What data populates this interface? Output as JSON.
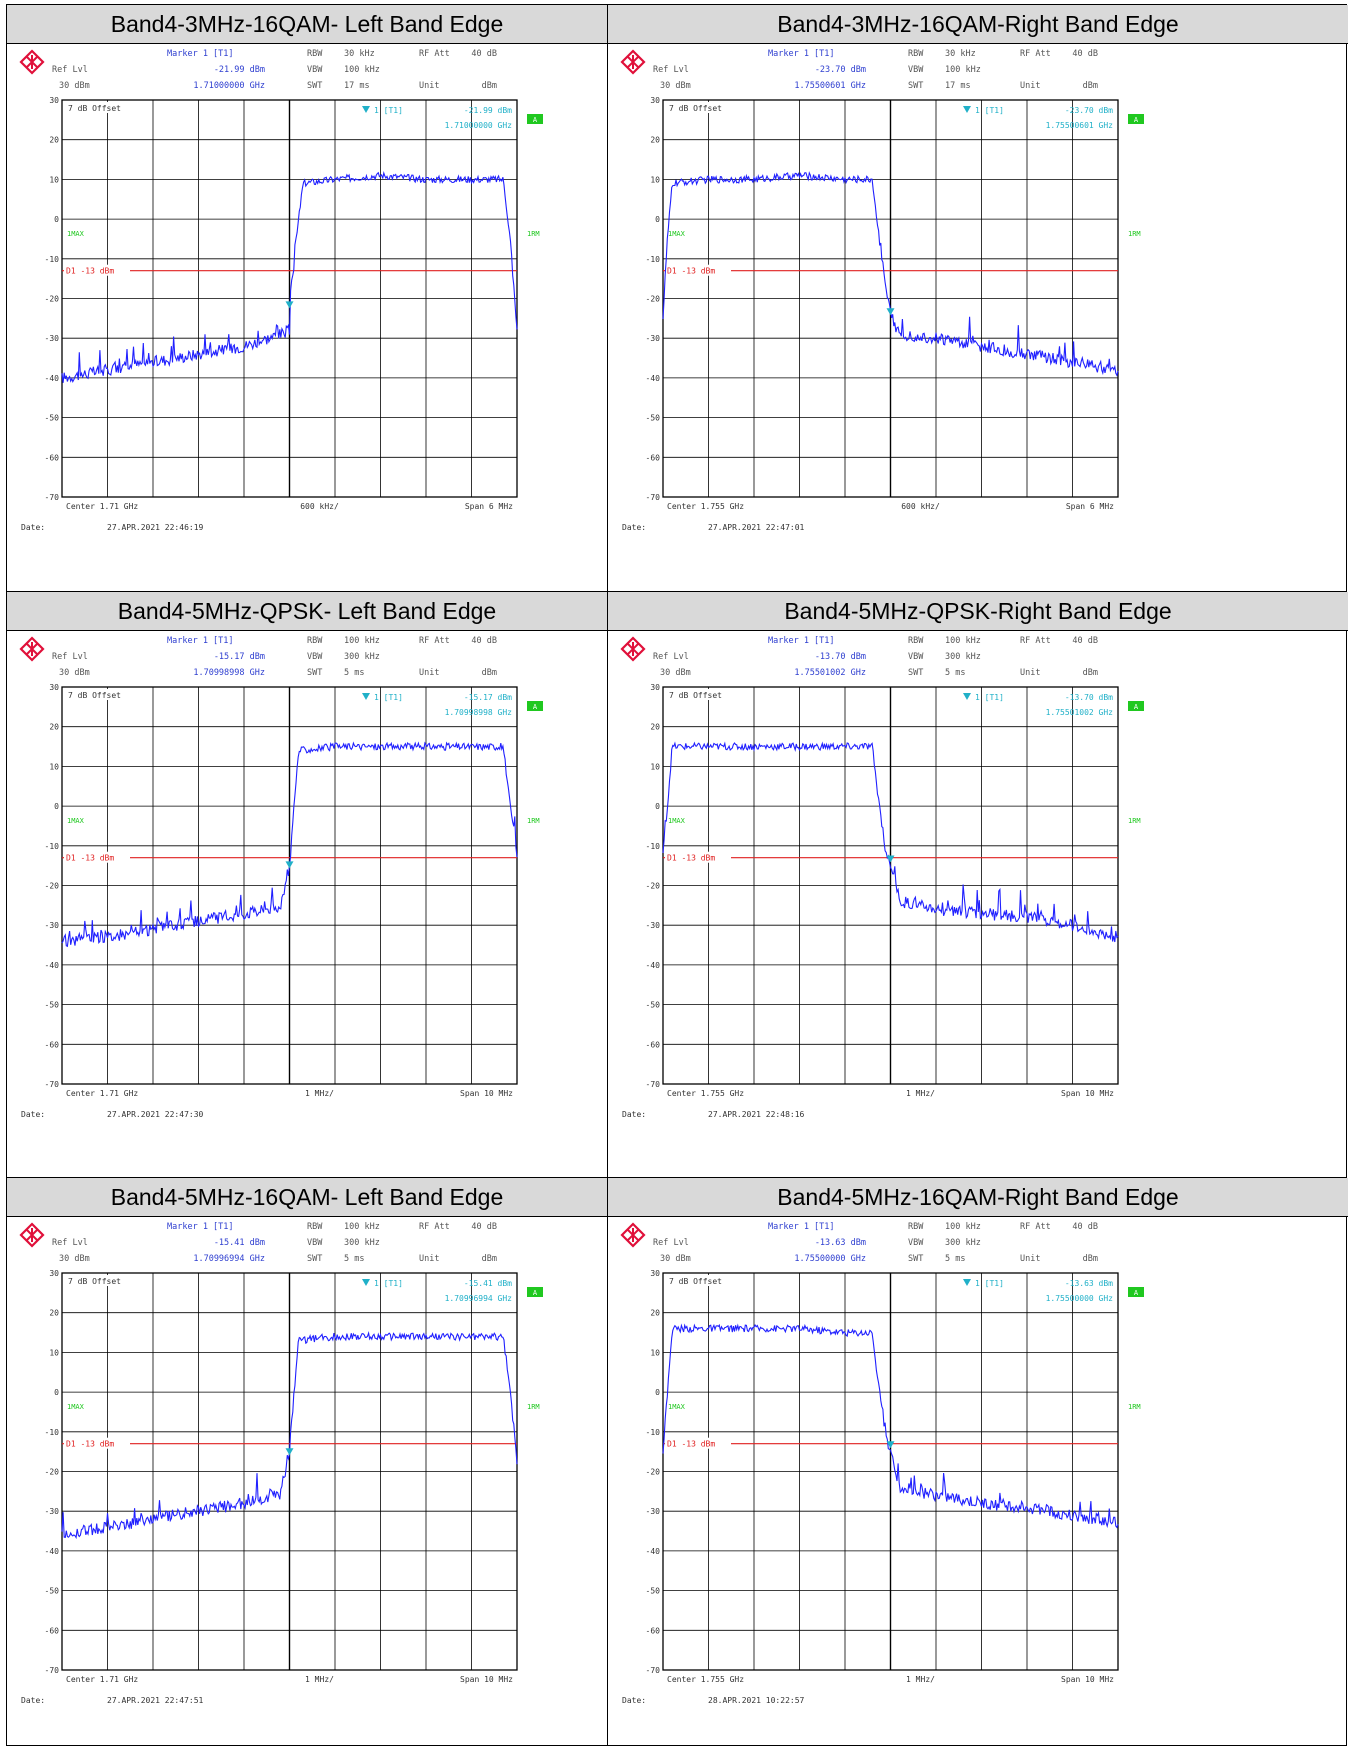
{
  "panels": [
    {
      "title": "Band4-3MHz-16QAM- Left Band Edge",
      "marker_label": "Marker 1 [T1]",
      "marker_level": "-21.99 dBm",
      "marker_freq": "1.71000000 GHz",
      "ref_lvl_label": "Ref Lvl",
      "ref_lvl": "30 dBm",
      "rbw_label": "RBW",
      "rbw": "30 kHz",
      "vbw_label": "VBW",
      "vbw": "100 kHz",
      "swt_label": "SWT",
      "swt": "17 ms",
      "rf_att_label": "RF Att",
      "rf_att": "40 dB",
      "unit_label": "Unit",
      "unit": "dBm",
      "offset": "7 dB Offset",
      "marker_box_label": "1 [T1]",
      "marker_box_level": "-21.99 dBm",
      "marker_box_freq": "1.71000000 GHz",
      "badge": "A",
      "trace_mode": "1MAX",
      "right_label": "1RM",
      "limit_label": "D1 -13 dBm",
      "center": "Center 1.71 GHz",
      "division": "600 kHz/",
      "span": "Span 6 MHz",
      "date_label": "Date:",
      "date": "27.APR.2021  22:46:19",
      "chart_data": {
        "type": "line",
        "edge": "left",
        "ylim": [
          -70,
          30
        ],
        "yticks": [
          "30",
          "20",
          "10",
          "0",
          "-10",
          "-20",
          "-30",
          "-40",
          "-50",
          "-60",
          "-70"
        ],
        "limit": -13,
        "marker_x": 0.5,
        "marker_y": -21.99,
        "series": [
          {
            "values": [
              [
                0,
                -40
              ],
              [
                0.1,
                -38
              ],
              [
                0.2,
                -36
              ],
              [
                0.3,
                -34
              ],
              [
                0.4,
                -32
              ],
              [
                0.48,
                -29
              ],
              [
                0.5,
                -28
              ],
              [
                0.5,
                -22
              ],
              [
                0.52,
                0
              ],
              [
                0.53,
                9
              ],
              [
                0.6,
                10
              ],
              [
                0.7,
                11
              ],
              [
                0.8,
                10
              ],
              [
                0.9,
                10
              ],
              [
                0.97,
                10
              ],
              [
                0.985,
                -5
              ],
              [
                1,
                -27
              ]
            ]
          }
        ]
      }
    },
    {
      "title": "Band4-3MHz-16QAM-Right Band Edge",
      "marker_label": "Marker 1 [T1]",
      "marker_level": "-23.70 dBm",
      "marker_freq": "1.75500601 GHz",
      "ref_lvl_label": "Ref Lvl",
      "ref_lvl": "30 dBm",
      "rbw_label": "RBW",
      "rbw": "30 kHz",
      "vbw_label": "VBW",
      "vbw": "100 kHz",
      "swt_label": "SWT",
      "swt": "17 ms",
      "rf_att_label": "RF Att",
      "rf_att": "40 dB",
      "unit_label": "Unit",
      "unit": "dBm",
      "offset": "7 dB Offset",
      "marker_box_label": "1 [T1]",
      "marker_box_level": "-23.70 dBm",
      "marker_box_freq": "1.75500601 GHz",
      "badge": "A",
      "trace_mode": "1MAX",
      "right_label": "1RM",
      "limit_label": "D1 -13 dBm",
      "center": "Center 1.755 GHz",
      "division": "600 kHz/",
      "span": "Span 6 MHz",
      "date_label": "Date:",
      "date": "27.APR.2021  22:47:01",
      "chart_data": {
        "type": "line",
        "edge": "right",
        "ylim": [
          -70,
          30
        ],
        "yticks": [
          "30",
          "20",
          "10",
          "0",
          "-10",
          "-20",
          "-30",
          "-40",
          "-50",
          "-60",
          "-70"
        ],
        "limit": -13,
        "marker_x": 0.5,
        "marker_y": -23.7,
        "series": [
          {
            "values": [
              [
                0,
                -24
              ],
              [
                0.01,
                -5
              ],
              [
                0.02,
                9
              ],
              [
                0.1,
                10
              ],
              [
                0.2,
                10
              ],
              [
                0.3,
                11
              ],
              [
                0.4,
                10
              ],
              [
                0.46,
                10
              ],
              [
                0.47,
                0
              ],
              [
                0.49,
                -18
              ],
              [
                0.5,
                -24
              ],
              [
                0.52,
                -29
              ],
              [
                0.6,
                -30
              ],
              [
                0.7,
                -32
              ],
              [
                0.8,
                -34
              ],
              [
                0.9,
                -36
              ],
              [
                1,
                -38
              ]
            ]
          }
        ]
      }
    },
    {
      "title": "Band4-5MHz-QPSK- Left Band Edge",
      "marker_label": "Marker 1 [T1]",
      "marker_level": "-15.17 dBm",
      "marker_freq": "1.70998998 GHz",
      "ref_lvl_label": "Ref Lvl",
      "ref_lvl": "30 dBm",
      "rbw_label": "RBW",
      "rbw": "100 kHz",
      "vbw_label": "VBW",
      "vbw": "300 kHz",
      "swt_label": "SWT",
      "swt": "5 ms",
      "rf_att_label": "RF Att",
      "rf_att": "40 dB",
      "unit_label": "Unit",
      "unit": "dBm",
      "offset": "7 dB Offset",
      "marker_box_label": "1 [T1]",
      "marker_box_level": "-15.17 dBm",
      "marker_box_freq": "1.70998998 GHz",
      "badge": "A",
      "trace_mode": "1MAX",
      "right_label": "1RM",
      "limit_label": "D1 -13 dBm",
      "center": "Center 1.71 GHz",
      "division": "1 MHz/",
      "span": "Span 10 MHz",
      "date_label": "Date:",
      "date": "27.APR.2021  22:47:30",
      "chart_data": {
        "type": "line",
        "edge": "left",
        "ylim": [
          -70,
          30
        ],
        "yticks": [
          "30",
          "20",
          "10",
          "0",
          "-10",
          "-20",
          "-30",
          "-40",
          "-50",
          "-60",
          "-70"
        ],
        "limit": -13,
        "marker_x": 0.5,
        "marker_y": -15.17,
        "series": [
          {
            "values": [
              [
                0,
                -34
              ],
              [
                0.1,
                -33
              ],
              [
                0.2,
                -31
              ],
              [
                0.3,
                -29
              ],
              [
                0.4,
                -27
              ],
              [
                0.48,
                -25
              ],
              [
                0.49,
                -20
              ],
              [
                0.5,
                -15
              ],
              [
                0.51,
                0
              ],
              [
                0.52,
                14
              ],
              [
                0.6,
                15
              ],
              [
                0.7,
                15
              ],
              [
                0.8,
                15
              ],
              [
                0.9,
                15
              ],
              [
                0.97,
                15
              ],
              [
                0.985,
                0
              ],
              [
                1,
                -12
              ]
            ]
          }
        ]
      }
    },
    {
      "title": "Band4-5MHz-QPSK-Right Band Edge",
      "marker_label": "Marker 1 [T1]",
      "marker_level": "-13.70 dBm",
      "marker_freq": "1.75501002 GHz",
      "ref_lvl_label": "Ref Lvl",
      "ref_lvl": "30 dBm",
      "rbw_label": "RBW",
      "rbw": "100 kHz",
      "vbw_label": "VBW",
      "vbw": "300 kHz",
      "swt_label": "SWT",
      "swt": "5 ms",
      "rf_att_label": "RF Att",
      "rf_att": "40 dB",
      "unit_label": "Unit",
      "unit": "dBm",
      "offset": "7 dB Offset",
      "marker_box_label": "1 [T1]",
      "marker_box_level": "-13.70 dBm",
      "marker_box_freq": "1.75501002 GHz",
      "badge": "A",
      "trace_mode": "1MAX",
      "right_label": "1RM",
      "limit_label": "D1 -13 dBm",
      "center": "Center 1.755 GHz",
      "division": "1 MHz/",
      "span": "Span 10 MHz",
      "date_label": "Date:",
      "date": "27.APR.2021  22:48:16",
      "chart_data": {
        "type": "line",
        "edge": "right",
        "ylim": [
          -70,
          30
        ],
        "yticks": [
          "30",
          "20",
          "10",
          "0",
          "-10",
          "-20",
          "-30",
          "-40",
          "-50",
          "-60",
          "-70"
        ],
        "limit": -13,
        "marker_x": 0.5,
        "marker_y": -13.7,
        "series": [
          {
            "values": [
              [
                0,
                -12
              ],
              [
                0.01,
                0
              ],
              [
                0.02,
                15
              ],
              [
                0.1,
                15
              ],
              [
                0.2,
                15
              ],
              [
                0.3,
                15
              ],
              [
                0.4,
                15
              ],
              [
                0.46,
                15
              ],
              [
                0.47,
                5
              ],
              [
                0.49,
                -12
              ],
              [
                0.5,
                -14
              ],
              [
                0.52,
                -24
              ],
              [
                0.6,
                -26
              ],
              [
                0.7,
                -27
              ],
              [
                0.8,
                -28
              ],
              [
                0.9,
                -30
              ],
              [
                1,
                -33
              ]
            ]
          }
        ]
      }
    },
    {
      "title": "Band4-5MHz-16QAM- Left Band Edge",
      "marker_label": "Marker 1 [T1]",
      "marker_level": "-15.41 dBm",
      "marker_freq": "1.70996994 GHz",
      "ref_lvl_label": "Ref Lvl",
      "ref_lvl": "30 dBm",
      "rbw_label": "RBW",
      "rbw": "100 kHz",
      "vbw_label": "VBW",
      "vbw": "300 kHz",
      "swt_label": "SWT",
      "swt": "5 ms",
      "rf_att_label": "RF Att",
      "rf_att": "40 dB",
      "unit_label": "Unit",
      "unit": "dBm",
      "offset": "7 dB Offset",
      "marker_box_label": "1 [T1]",
      "marker_box_level": "-15.41 dBm",
      "marker_box_freq": "1.70996994 GHz",
      "badge": "A",
      "trace_mode": "1MAX",
      "right_label": "1RM",
      "limit_label": "D1 -13 dBm",
      "center": "Center 1.71 GHz",
      "division": "1 MHz/",
      "span": "Span 10 MHz",
      "date_label": "Date:",
      "date": "27.APR.2021  22:47:51",
      "chart_data": {
        "type": "line",
        "edge": "left",
        "ylim": [
          -70,
          30
        ],
        "yticks": [
          "30",
          "20",
          "10",
          "0",
          "-10",
          "-20",
          "-30",
          "-40",
          "-50",
          "-60",
          "-70"
        ],
        "limit": -13,
        "marker_x": 0.5,
        "marker_y": -15.41,
        "series": [
          {
            "values": [
              [
                0,
                -36
              ],
              [
                0.1,
                -34
              ],
              [
                0.2,
                -32
              ],
              [
                0.3,
                -30
              ],
              [
                0.4,
                -28
              ],
              [
                0.48,
                -26
              ],
              [
                0.49,
                -20
              ],
              [
                0.5,
                -15
              ],
              [
                0.51,
                0
              ],
              [
                0.52,
                13
              ],
              [
                0.6,
                14
              ],
              [
                0.7,
                14
              ],
              [
                0.8,
                14
              ],
              [
                0.9,
                14
              ],
              [
                0.97,
                14
              ],
              [
                0.985,
                0
              ],
              [
                1,
                -17
              ]
            ]
          }
        ]
      }
    },
    {
      "title": "Band4-5MHz-16QAM-Right Band Edge",
      "marker_label": "Marker 1 [T1]",
      "marker_level": "-13.63 dBm",
      "marker_freq": "1.75500000 GHz",
      "ref_lvl_label": "Ref Lvl",
      "ref_lvl": "30 dBm",
      "rbw_label": "RBW",
      "rbw": "100 kHz",
      "vbw_label": "VBW",
      "vbw": "300 kHz",
      "swt_label": "SWT",
      "swt": "5 ms",
      "rf_att_label": "RF Att",
      "rf_att": "40 dB",
      "unit_label": "Unit",
      "unit": "dBm",
      "offset": "7 dB Offset",
      "marker_box_label": "1 [T1]",
      "marker_box_level": "-13.63 dBm",
      "marker_box_freq": "1.75500000 GHz",
      "badge": "A",
      "trace_mode": "1MAX",
      "right_label": "1RM",
      "limit_label": "D1 -13 dBm",
      "center": "Center 1.755 GHz",
      "division": "1 MHz/",
      "span": "Span 10 MHz",
      "date_label": "Date:",
      "date": "28.APR.2021  10:22:57",
      "chart_data": {
        "type": "line",
        "edge": "right",
        "ylim": [
          -70,
          30
        ],
        "yticks": [
          "30",
          "20",
          "10",
          "0",
          "-10",
          "-20",
          "-30",
          "-40",
          "-50",
          "-60",
          "-70"
        ],
        "limit": -13,
        "marker_x": 0.5,
        "marker_y": -13.63,
        "series": [
          {
            "values": [
              [
                0,
                -14
              ],
              [
                0.01,
                0
              ],
              [
                0.02,
                16
              ],
              [
                0.1,
                16
              ],
              [
                0.2,
                16
              ],
              [
                0.3,
                16
              ],
              [
                0.4,
                15
              ],
              [
                0.46,
                15
              ],
              [
                0.47,
                5
              ],
              [
                0.49,
                -12
              ],
              [
                0.5,
                -14
              ],
              [
                0.52,
                -24
              ],
              [
                0.6,
                -26
              ],
              [
                0.7,
                -28
              ],
              [
                0.8,
                -29
              ],
              [
                0.9,
                -31
              ],
              [
                1,
                -33
              ]
            ]
          }
        ]
      }
    }
  ],
  "colors": {
    "trace": "#2020ff",
    "limit": "#e02020",
    "cyan": "#20b0c8",
    "green": "#20c820",
    "grid": "#000000",
    "logo": "#e0103a"
  }
}
